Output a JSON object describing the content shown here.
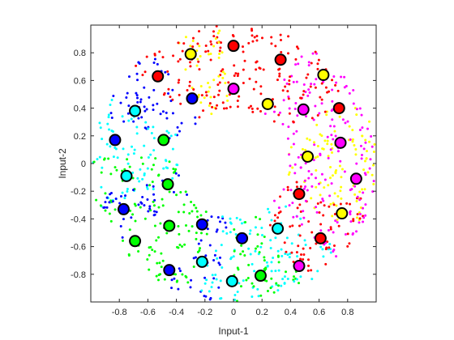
{
  "chart_data": {
    "type": "scatter",
    "title": "",
    "xlabel": "Input-1",
    "ylabel": "Input-2",
    "xlim": [
      -1,
      1
    ],
    "ylim": [
      -1,
      1
    ],
    "x_ticks": [
      "-0.8",
      "-0.6",
      "-0.4",
      "-0.2",
      "0",
      "0.2",
      "0.4",
      "0.6",
      "0.8"
    ],
    "y_ticks": [
      "0.8",
      "0.6",
      "0.4",
      "0.2",
      "0",
      "-0.2",
      "-0.4",
      "-0.6",
      "-0.8"
    ],
    "grid": false,
    "box": true,
    "ring_data": {
      "description": "annulus of small colored points",
      "inner_radius": 0.39,
      "outer_radius": 1.0,
      "color_sectors": [
        {
          "color": "#ffff00",
          "from_deg": -30,
          "to_deg": 30
        },
        {
          "color": "#ff00ff",
          "from_deg": -15,
          "to_deg": 60
        },
        {
          "color": "#ff0000",
          "from_deg": 30,
          "to_deg": 105
        },
        {
          "color": "#ffff00",
          "from_deg": 95,
          "to_deg": 120
        },
        {
          "color": "#ff0000",
          "from_deg": 105,
          "to_deg": 135
        },
        {
          "color": "#0000ff",
          "from_deg": 125,
          "to_deg": 160
        },
        {
          "color": "#00ffff",
          "from_deg": 150,
          "to_deg": 200
        },
        {
          "color": "#00ff00",
          "from_deg": 175,
          "to_deg": 250
        },
        {
          "color": "#0000ff",
          "from_deg": 190,
          "to_deg": 215
        },
        {
          "color": "#0000ff",
          "from_deg": 240,
          "to_deg": 265
        },
        {
          "color": "#00ffff",
          "from_deg": 255,
          "to_deg": 290
        },
        {
          "color": "#00ff00",
          "from_deg": 270,
          "to_deg": 300
        },
        {
          "color": "#00ffff",
          "from_deg": 290,
          "to_deg": 320
        },
        {
          "color": "#ff0000",
          "from_deg": 300,
          "to_deg": 345
        },
        {
          "color": "#ff00ff",
          "from_deg": 315,
          "to_deg": 345
        }
      ]
    },
    "centers": [
      {
        "x": 0.0,
        "y": 0.85,
        "color": "#ff0000"
      },
      {
        "x": -0.3,
        "y": 0.79,
        "color": "#ffff00"
      },
      {
        "x": 0.33,
        "y": 0.75,
        "color": "#ff0000"
      },
      {
        "x": -0.53,
        "y": 0.63,
        "color": "#ff0000"
      },
      {
        "x": 0.63,
        "y": 0.64,
        "color": "#ffff00"
      },
      {
        "x": 0.0,
        "y": 0.54,
        "color": "#ff00ff"
      },
      {
        "x": -0.29,
        "y": 0.47,
        "color": "#0000ff"
      },
      {
        "x": 0.24,
        "y": 0.43,
        "color": "#ffff00"
      },
      {
        "x": -0.69,
        "y": 0.38,
        "color": "#00ffff"
      },
      {
        "x": 0.49,
        "y": 0.39,
        "color": "#ff00ff"
      },
      {
        "x": 0.74,
        "y": 0.4,
        "color": "#ff0000"
      },
      {
        "x": -0.83,
        "y": 0.17,
        "color": "#0000ff"
      },
      {
        "x": -0.49,
        "y": 0.17,
        "color": "#00ff00"
      },
      {
        "x": 0.75,
        "y": 0.15,
        "color": "#ff00ff"
      },
      {
        "x": 0.52,
        "y": 0.05,
        "color": "#ffff00"
      },
      {
        "x": -0.75,
        "y": -0.09,
        "color": "#00ffff"
      },
      {
        "x": 0.86,
        "y": -0.11,
        "color": "#ff00ff"
      },
      {
        "x": -0.46,
        "y": -0.15,
        "color": "#00ff00"
      },
      {
        "x": 0.46,
        "y": -0.22,
        "color": "#ff0000"
      },
      {
        "x": -0.77,
        "y": -0.33,
        "color": "#0000ff"
      },
      {
        "x": 0.76,
        "y": -0.36,
        "color": "#ffff00"
      },
      {
        "x": -0.45,
        "y": -0.45,
        "color": "#00ff00"
      },
      {
        "x": -0.22,
        "y": -0.44,
        "color": "#0000ff"
      },
      {
        "x": 0.31,
        "y": -0.47,
        "color": "#00ffff"
      },
      {
        "x": 0.06,
        "y": -0.54,
        "color": "#0000ff"
      },
      {
        "x": 0.61,
        "y": -0.54,
        "color": "#ff0000"
      },
      {
        "x": -0.69,
        "y": -0.56,
        "color": "#00ff00"
      },
      {
        "x": -0.22,
        "y": -0.71,
        "color": "#00ffff"
      },
      {
        "x": 0.46,
        "y": -0.74,
        "color": "#ff00ff"
      },
      {
        "x": -0.45,
        "y": -0.77,
        "color": "#0000ff"
      },
      {
        "x": 0.19,
        "y": -0.81,
        "color": "#00ff00"
      },
      {
        "x": -0.01,
        "y": -0.85,
        "color": "#00ffff"
      }
    ]
  }
}
